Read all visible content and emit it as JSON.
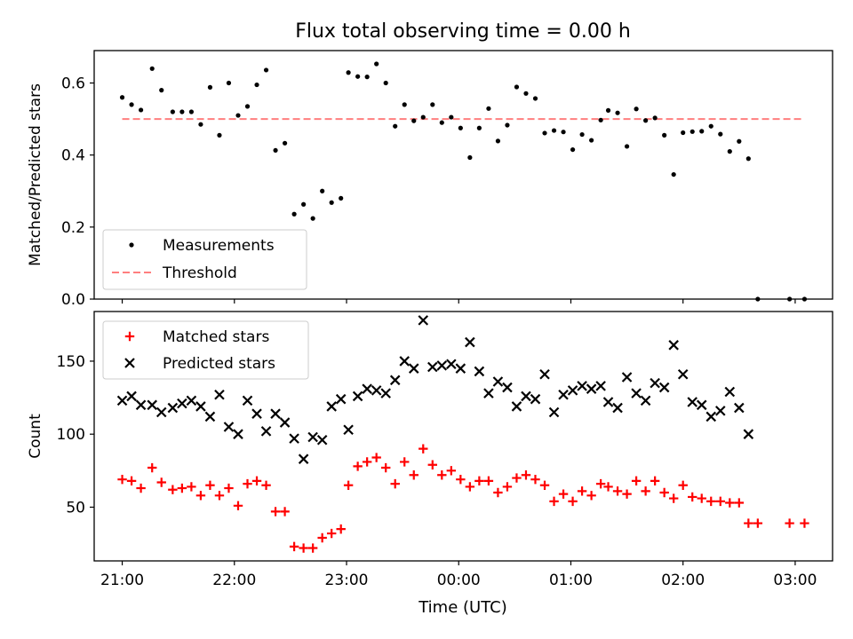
{
  "colors": {
    "background": "#ffffff",
    "axes": "#000000",
    "measurement": "#000000",
    "threshold": "#ff7f7f",
    "matched": "#ff0000",
    "predicted": "#000000",
    "legend_edge": "#cccccc"
  },
  "figure": {
    "title": "Flux total observing time = 0.00 h",
    "xlabel": "Time (UTC)"
  },
  "chart_data": [
    {
      "type": "scatter",
      "ylabel": "Matched/Predicted stars",
      "ylim": [
        0,
        0.69
      ],
      "yticks": [
        0.0,
        0.2,
        0.4,
        0.6
      ],
      "ytick_labels": [
        "0.0",
        "0.2",
        "0.4",
        "0.6"
      ],
      "legend_placement": "lower-left",
      "legend": [
        {
          "label": "Measurements",
          "marker": "dot"
        },
        {
          "label": "Threshold",
          "marker": "dashed-line"
        }
      ],
      "threshold": {
        "name": "Threshold",
        "x": [
          "21:00",
          "03:05"
        ],
        "y": 0.5
      },
      "series": [
        {
          "name": "Measurements",
          "points": [
            [
              "21:00",
              0.56
            ],
            [
              "21:05",
              0.54
            ],
            [
              "21:10",
              0.525
            ],
            [
              "21:16",
              0.64
            ],
            [
              "21:21",
              0.58
            ],
            [
              "21:27",
              0.52
            ],
            [
              "21:32",
              0.52
            ],
            [
              "21:37",
              0.52
            ],
            [
              "21:42",
              0.485
            ],
            [
              "21:47",
              0.588
            ],
            [
              "21:52",
              0.455
            ],
            [
              "21:57",
              0.6
            ],
            [
              "22:02",
              0.51
            ],
            [
              "22:07",
              0.535
            ],
            [
              "22:12",
              0.595
            ],
            [
              "22:17",
              0.636
            ],
            [
              "22:22",
              0.413
            ],
            [
              "22:27",
              0.433
            ],
            [
              "22:32",
              0.236
            ],
            [
              "22:37",
              0.263
            ],
            [
              "22:42",
              0.224
            ],
            [
              "22:47",
              0.3
            ],
            [
              "22:52",
              0.268
            ],
            [
              "22:57",
              0.28
            ],
            [
              "23:01",
              0.629
            ],
            [
              "23:06",
              0.618
            ],
            [
              "23:11",
              0.617
            ],
            [
              "23:16",
              0.653
            ],
            [
              "23:21",
              0.6
            ],
            [
              "23:26",
              0.48
            ],
            [
              "23:31",
              0.54
            ],
            [
              "23:36",
              0.495
            ],
            [
              "23:41",
              0.505
            ],
            [
              "23:46",
              0.54
            ],
            [
              "23:51",
              0.49
            ],
            [
              "23:56",
              0.505
            ],
            [
              "00:01",
              0.475
            ],
            [
              "00:06",
              0.393
            ],
            [
              "00:11",
              0.475
            ],
            [
              "00:16",
              0.529
            ],
            [
              "00:21",
              0.439
            ],
            [
              "00:26",
              0.483
            ],
            [
              "00:31",
              0.589
            ],
            [
              "00:36",
              0.571
            ],
            [
              "00:41",
              0.557
            ],
            [
              "00:46",
              0.461
            ],
            [
              "00:51",
              0.468
            ],
            [
              "00:56",
              0.464
            ],
            [
              "01:01",
              0.415
            ],
            [
              "01:06",
              0.457
            ],
            [
              "01:11",
              0.441
            ],
            [
              "01:16",
              0.497
            ],
            [
              "01:20",
              0.524
            ],
            [
              "01:25",
              0.517
            ],
            [
              "01:30",
              0.424
            ],
            [
              "01:35",
              0.528
            ],
            [
              "01:40",
              0.496
            ],
            [
              "01:45",
              0.503
            ],
            [
              "01:50",
              0.455
            ],
            [
              "01:55",
              0.346
            ],
            [
              "02:00",
              0.462
            ],
            [
              "02:05",
              0.465
            ],
            [
              "02:10",
              0.466
            ],
            [
              "02:15",
              0.48
            ],
            [
              "02:20",
              0.458
            ],
            [
              "02:25",
              0.41
            ],
            [
              "02:30",
              0.438
            ],
            [
              "02:35",
              0.39
            ],
            [
              "02:40",
              0.0
            ],
            [
              "02:57",
              0.0
            ],
            [
              "03:05",
              0.0
            ]
          ]
        }
      ]
    },
    {
      "type": "scatter",
      "ylabel": "Count",
      "ylim": [
        13.2,
        184
      ],
      "yticks": [
        50,
        100,
        150
      ],
      "ytick_labels": [
        "50",
        "100",
        "150"
      ],
      "xticks": [
        "21:00",
        "22:00",
        "23:00",
        "00:00",
        "01:00",
        "02:00",
        "03:00"
      ],
      "xlim": [
        "20:45",
        "03:20"
      ],
      "legend_placement": "upper-left",
      "legend": [
        {
          "label": "Matched stars",
          "marker": "plus"
        },
        {
          "label": "Predicted stars",
          "marker": "x"
        }
      ],
      "series": [
        {
          "name": "Matched stars",
          "points": [
            [
              "21:00",
              69
            ],
            [
              "21:05",
              68
            ],
            [
              "21:10",
              63
            ],
            [
              "21:16",
              77
            ],
            [
              "21:21",
              67
            ],
            [
              "21:27",
              62
            ],
            [
              "21:32",
              63
            ],
            [
              "21:37",
              64
            ],
            [
              "21:42",
              58
            ],
            [
              "21:47",
              65
            ],
            [
              "21:52",
              58
            ],
            [
              "21:57",
              63
            ],
            [
              "22:02",
              51
            ],
            [
              "22:07",
              66
            ],
            [
              "22:12",
              68
            ],
            [
              "22:17",
              65
            ],
            [
              "22:22",
              47
            ],
            [
              "22:27",
              47
            ],
            [
              "22:32",
              23
            ],
            [
              "22:37",
              22
            ],
            [
              "22:42",
              22
            ],
            [
              "22:47",
              29
            ],
            [
              "22:52",
              32
            ],
            [
              "22:57",
              35
            ],
            [
              "23:01",
              65
            ],
            [
              "23:06",
              78
            ],
            [
              "23:11",
              81
            ],
            [
              "23:16",
              84
            ],
            [
              "23:21",
              77
            ],
            [
              "23:26",
              66
            ],
            [
              "23:31",
              81
            ],
            [
              "23:36",
              72
            ],
            [
              "23:41",
              90
            ],
            [
              "23:46",
              79
            ],
            [
              "23:51",
              72
            ],
            [
              "23:56",
              75
            ],
            [
              "00:01",
              69
            ],
            [
              "00:06",
              64
            ],
            [
              "00:11",
              68
            ],
            [
              "00:16",
              68
            ],
            [
              "00:21",
              60
            ],
            [
              "00:26",
              64
            ],
            [
              "00:31",
              70
            ],
            [
              "00:36",
              72
            ],
            [
              "00:41",
              69
            ],
            [
              "00:46",
              65
            ],
            [
              "00:51",
              54
            ],
            [
              "00:56",
              59
            ],
            [
              "01:01",
              54
            ],
            [
              "01:06",
              61
            ],
            [
              "01:11",
              58
            ],
            [
              "01:16",
              66
            ],
            [
              "01:20",
              64
            ],
            [
              "01:25",
              61
            ],
            [
              "01:30",
              59
            ],
            [
              "01:35",
              68
            ],
            [
              "01:40",
              61
            ],
            [
              "01:45",
              68
            ],
            [
              "01:50",
              60
            ],
            [
              "01:55",
              56
            ],
            [
              "02:00",
              65
            ],
            [
              "02:05",
              57
            ],
            [
              "02:10",
              56
            ],
            [
              "02:15",
              54
            ],
            [
              "02:20",
              54
            ],
            [
              "02:25",
              53
            ],
            [
              "02:30",
              53
            ],
            [
              "02:35",
              39
            ],
            [
              "02:40",
              39
            ],
            [
              "02:57",
              39
            ],
            [
              "03:05",
              39
            ]
          ]
        },
        {
          "name": "Predicted stars",
          "points": [
            [
              "21:00",
              123
            ],
            [
              "21:05",
              126
            ],
            [
              "21:10",
              120
            ],
            [
              "21:16",
              120
            ],
            [
              "21:21",
              115
            ],
            [
              "21:27",
              118
            ],
            [
              "21:32",
              121
            ],
            [
              "21:37",
              123
            ],
            [
              "21:42",
              119
            ],
            [
              "21:47",
              112
            ],
            [
              "21:52",
              127
            ],
            [
              "21:57",
              105
            ],
            [
              "22:02",
              100
            ],
            [
              "22:07",
              123
            ],
            [
              "22:12",
              114
            ],
            [
              "22:17",
              102
            ],
            [
              "22:22",
              114
            ],
            [
              "22:27",
              108
            ],
            [
              "22:32",
              97
            ],
            [
              "22:37",
              83
            ],
            [
              "22:42",
              98
            ],
            [
              "22:47",
              96
            ],
            [
              "22:52",
              119
            ],
            [
              "22:57",
              124
            ],
            [
              "23:01",
              103
            ],
            [
              "23:06",
              126
            ],
            [
              "23:11",
              131
            ],
            [
              "23:16",
              130
            ],
            [
              "23:21",
              128
            ],
            [
              "23:26",
              137
            ],
            [
              "23:31",
              150
            ],
            [
              "23:36",
              145
            ],
            [
              "23:41",
              178
            ],
            [
              "23:46",
              146
            ],
            [
              "23:51",
              147
            ],
            [
              "23:56",
              148
            ],
            [
              "00:01",
              145
            ],
            [
              "00:06",
              163
            ],
            [
              "00:11",
              143
            ],
            [
              "00:16",
              128
            ],
            [
              "00:21",
              136
            ],
            [
              "00:26",
              132
            ],
            [
              "00:31",
              119
            ],
            [
              "00:36",
              126
            ],
            [
              "00:41",
              124
            ],
            [
              "00:46",
              141
            ],
            [
              "00:51",
              115
            ],
            [
              "00:56",
              127
            ],
            [
              "01:01",
              130
            ],
            [
              "01:06",
              133
            ],
            [
              "01:11",
              131
            ],
            [
              "01:16",
              133
            ],
            [
              "01:20",
              122
            ],
            [
              "01:25",
              118
            ],
            [
              "01:30",
              139
            ],
            [
              "01:35",
              128
            ],
            [
              "01:40",
              123
            ],
            [
              "01:45",
              135
            ],
            [
              "01:50",
              132
            ],
            [
              "01:55",
              161
            ],
            [
              "02:00",
              141
            ],
            [
              "02:05",
              122
            ],
            [
              "02:10",
              120
            ],
            [
              "02:15",
              112
            ],
            [
              "02:20",
              116
            ],
            [
              "02:25",
              129
            ],
            [
              "02:30",
              118
            ],
            [
              "02:35",
              100
            ]
          ]
        }
      ]
    }
  ]
}
